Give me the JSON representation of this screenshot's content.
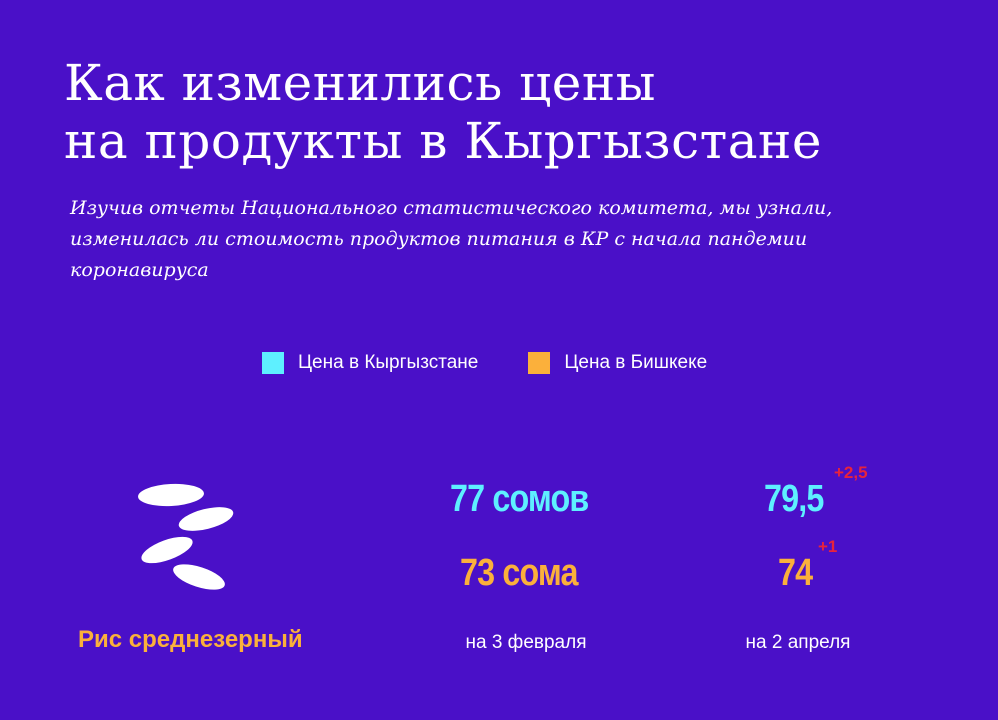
{
  "title_line1": "Как изменились цены",
  "title_line2": "на продукты в Кыргызстане",
  "subtitle_lines": [
    "Изучив отчеты Национального статистического комитета, мы узнали,",
    "изменилась ли стоимость продуктов питания в КР с начала пандемии",
    "коронавируса"
  ],
  "colors": {
    "background": "#4a10c8",
    "kyrgyzstan": "#5ef0ff",
    "bishkek": "#fbb03b",
    "delta": "#e8233c"
  },
  "legend": [
    {
      "label": "Цена в Кыргызстане",
      "color": "#5ef0ff"
    },
    {
      "label": "Цена в Бишкеке",
      "color": "#fbb03b"
    }
  ],
  "chart_data": {
    "type": "table",
    "title": "Как изменились цены на продукты в Кыргызстане",
    "series": [
      {
        "name": "Цена в Кыргызстане",
        "values": [
          77,
          79.5
        ]
      },
      {
        "name": "Цена в Бишкеке",
        "values": [
          73,
          74
        ]
      }
    ],
    "categories": [
      "на 3 февраля",
      "на 2 апреля"
    ],
    "rows": [
      {
        "product": "Рис среднезерный",
        "icon": "rice-grains-icon",
        "kg_feb_label": "77 сомов",
        "kg_apr_label": "79,5",
        "kg_delta": "+2,5",
        "bk_feb_label": "73 сома",
        "bk_apr_label": "74",
        "bk_delta": "+1",
        "date_feb": "на 3 февраля",
        "date_apr": "на 2 апреля"
      }
    ]
  }
}
